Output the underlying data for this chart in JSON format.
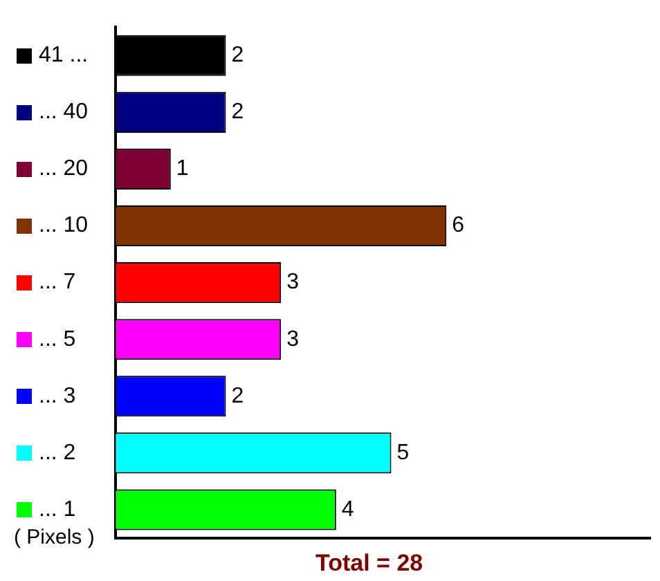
{
  "chart_data": {
    "type": "bar",
    "orientation": "horizontal",
    "categories": [
      "41 ...",
      "... 40",
      "... 20",
      "... 10",
      "... 7",
      "... 5",
      "... 3",
      "... 2",
      "... 1"
    ],
    "values": [
      2,
      2,
      1,
      6,
      3,
      3,
      2,
      5,
      4
    ],
    "colors": [
      "#000000",
      "#000080",
      "#800033",
      "#803300",
      "#ff0000",
      "#ff00ff",
      "#0000ff",
      "#00ffff",
      "#00ff00"
    ],
    "xlim": [
      0,
      9.7
    ],
    "tick_labels": "y",
    "data_labels": true,
    "grid": false,
    "legend": false,
    "ylabel": "( Pixels )",
    "annotations": [
      "Total = 28"
    ]
  }
}
